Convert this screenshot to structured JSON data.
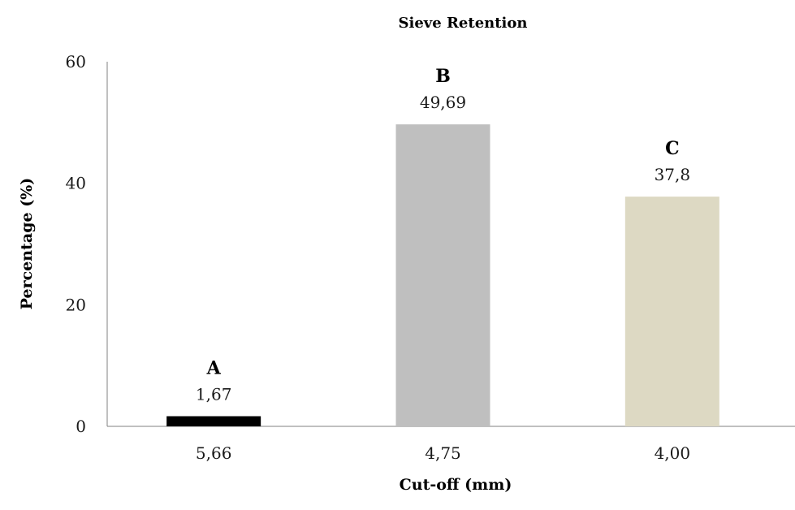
{
  "chart_data": {
    "type": "bar",
    "title": "Sieve Retention",
    "xlabel": "Cut-off (mm)",
    "ylabel": "Percentage (%)",
    "categories": [
      "5,66",
      "4,75",
      "4,00"
    ],
    "values": [
      1.67,
      49.69,
      37.8
    ],
    "value_labels": [
      "1,67",
      "49,69",
      "37,8"
    ],
    "bar_letters": [
      "A",
      "B",
      "C"
    ],
    "colors": [
      "#000000",
      "#bfbfbf",
      "#ddd9c3"
    ],
    "ylim": [
      0,
      60
    ],
    "yticks": [
      0,
      20,
      40,
      60
    ],
    "ytick_labels": [
      "0",
      "20",
      "40",
      "60"
    ],
    "grid": false,
    "legend": "none"
  }
}
